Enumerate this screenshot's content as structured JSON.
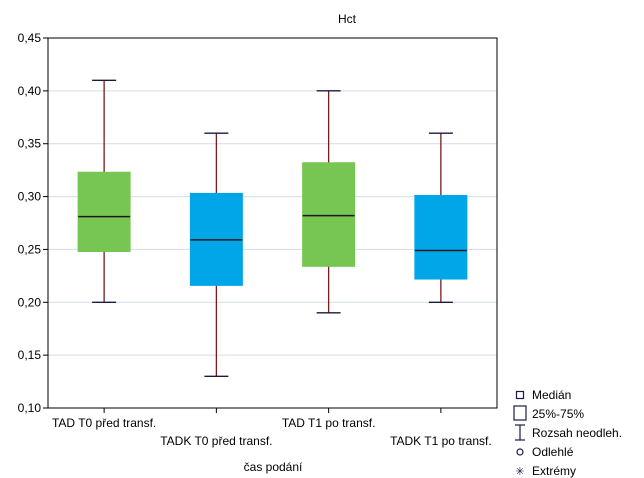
{
  "chart_data": {
    "type": "boxplot",
    "title": "Hct",
    "xlabel": "čas podání",
    "ylabel": "",
    "ylim": [
      0.1,
      0.45
    ],
    "yticks": [
      "0,10",
      "0,15",
      "0,20",
      "0,25",
      "0,30",
      "0,35",
      "0,40",
      "0,45"
    ],
    "ytick_values": [
      0.1,
      0.15,
      0.2,
      0.25,
      0.3,
      0.35,
      0.4,
      0.45
    ],
    "grid": true,
    "categories": [
      "TAD T0 před transf.",
      "TADK T0 před transf.",
      "TAD T1 po transf.",
      "TADK T1 po transf."
    ],
    "boxes": [
      {
        "median": 0.281,
        "q1": 0.248,
        "q3": 0.323,
        "min": 0.2,
        "max": 0.41,
        "color": "#77c552"
      },
      {
        "median": 0.259,
        "q1": 0.216,
        "q3": 0.303,
        "min": 0.13,
        "max": 0.36,
        "color": "#00a6e8"
      },
      {
        "median": 0.282,
        "q1": 0.234,
        "q3": 0.332,
        "min": 0.19,
        "max": 0.4,
        "color": "#77c552"
      },
      {
        "median": 0.249,
        "q1": 0.222,
        "q3": 0.301,
        "min": 0.2,
        "max": 0.36,
        "color": "#00a6e8"
      }
    ],
    "whisker_color": "#7b1a1a",
    "legend": {
      "placement": "bottom-right",
      "items": [
        "Medián",
        "25%-75%",
        "Rozsah neodleh.",
        "Odlehlé",
        "Extrémy"
      ]
    }
  }
}
